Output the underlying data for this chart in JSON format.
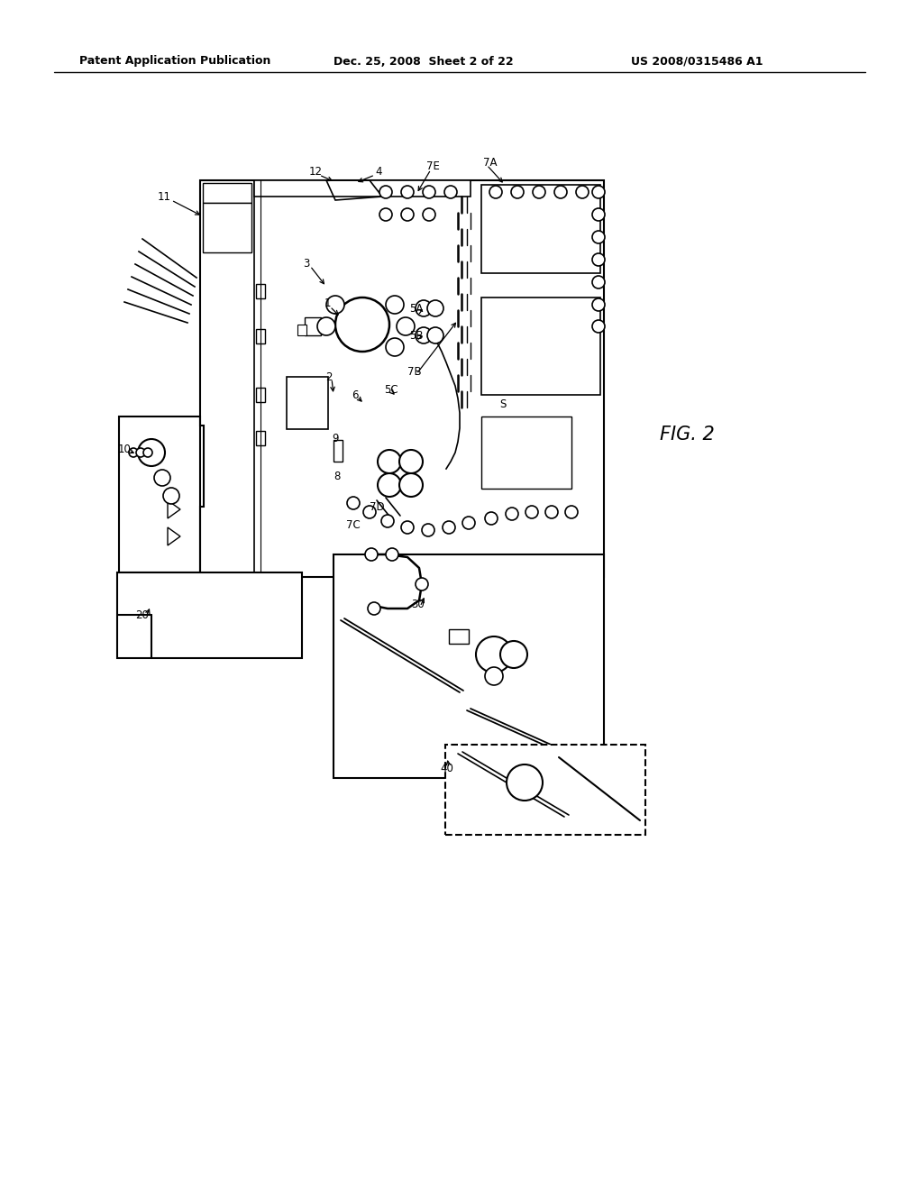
{
  "bg_color": "#ffffff",
  "line_color": "#000000",
  "header_text": "Patent Application Publication",
  "header_date": "Dec. 25, 2008  Sheet 2 of 22",
  "header_patent": "US 2008/0315486 A1",
  "fig_label": "FIG. 2"
}
